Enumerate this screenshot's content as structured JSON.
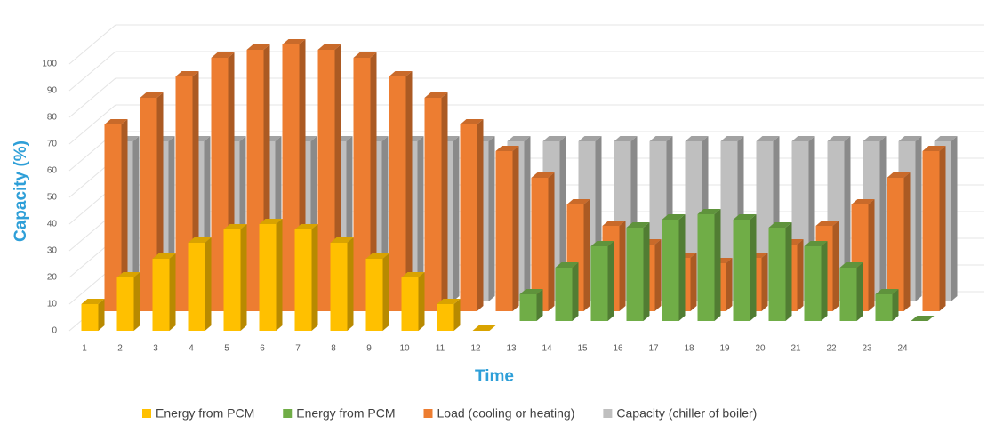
{
  "chart_data": {
    "type": "bar3d",
    "y_label": "Capacity (%)",
    "x_label": "Time",
    "categories": [
      "1",
      "2",
      "3",
      "4",
      "5",
      "6",
      "7",
      "8",
      "9",
      "10",
      "11",
      "12",
      "13",
      "14",
      "15",
      "16",
      "17",
      "18",
      "19",
      "20",
      "21",
      "22",
      "23",
      "24"
    ],
    "series": [
      {
        "name": "Energy from PCM",
        "color": "#ffc000",
        "values": [
          10,
          20,
          27,
          33,
          38,
          40,
          38,
          33,
          27,
          20,
          10,
          0,
          null,
          null,
          null,
          null,
          null,
          null,
          null,
          null,
          null,
          null,
          null,
          null
        ]
      },
      {
        "name": "Energy from PCM",
        "color": "#70ad47",
        "values": [
          null,
          null,
          null,
          null,
          null,
          null,
          null,
          null,
          null,
          null,
          null,
          null,
          10,
          20,
          28,
          35,
          38,
          40,
          38,
          35,
          28,
          20,
          10,
          0
        ]
      },
      {
        "name": "Load (cooling or heating)",
        "color": "#ed7d31",
        "values": [
          70,
          80,
          88,
          95,
          98,
          100,
          98,
          95,
          88,
          80,
          70,
          60,
          50,
          40,
          32,
          25,
          20,
          18,
          20,
          25,
          32,
          40,
          50,
          60
        ]
      },
      {
        "name": "Capacity (chiller of boiler)",
        "color": "#bfbfbf",
        "values": [
          60,
          60,
          60,
          60,
          60,
          60,
          60,
          60,
          60,
          60,
          60,
          60,
          60,
          60,
          60,
          60,
          60,
          60,
          60,
          60,
          60,
          60,
          60,
          60
        ]
      }
    ],
    "ylim": [
      0,
      100
    ],
    "yticks": [
      0,
      10,
      20,
      30,
      40,
      50,
      60,
      70,
      80,
      90,
      100
    ],
    "grid": true,
    "legend": "bottom"
  }
}
